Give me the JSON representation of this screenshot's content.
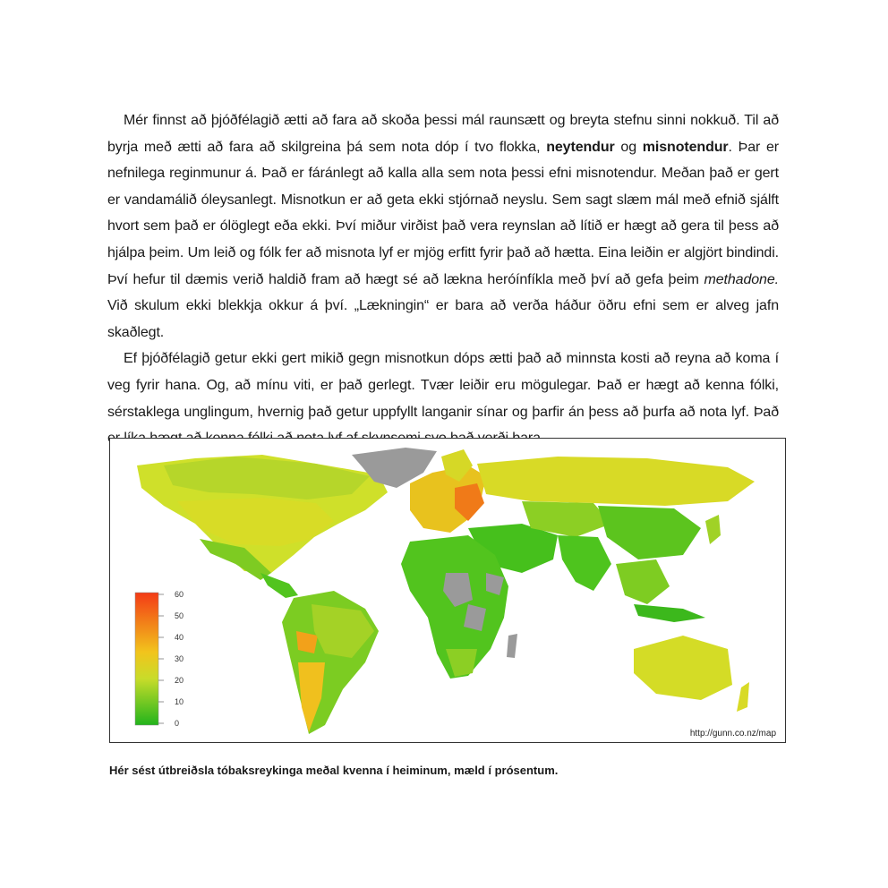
{
  "body_text": {
    "p1": [
      {
        "t": "Mér finnst að þjóðfélagið ætti að fara að skoða þessi mál raunsætt og breyta stefnu sinni nokkuð. Til að byrja með ætti að fara að skilgreina þá sem nota dóp í tvo flokka, "
      },
      {
        "t": "neytendur",
        "b": true
      },
      {
        "t": " og "
      },
      {
        "t": "misnotendur",
        "b": true
      },
      {
        "t": ". Þar er nefnilega reginmunur á. Það er fáránlegt að kalla alla sem nota þessi efni misnotendur. Meðan það er gert er vandamálið óleysanlegt. Misnotkun er að geta ekki stjórnað neyslu. Sem sagt slæm mál með efnið sjálft hvort sem það er ólöglegt eða ekki. Því miður virðist það vera reynslan að lítið er hægt að gera til þess að hjálpa þeim. Um leið og fólk fer að misnota lyf er mjög erfitt fyrir það að hætta. Eina leiðin er algjört bindindi. Því hefur til dæmis verið haldið fram að hægt sé að lækna heróínfíkla með því að gefa þeim "
      },
      {
        "t": "methadone.",
        "i": true
      },
      {
        "t": " Við skulum ekki blekkja okkur á því. „Lækningin“ er bara að verða háður öðru efni sem er alveg jafn skaðlegt."
      }
    ],
    "p2": [
      {
        "t": "Ef þjóðfélagið getur ekki gert mikið gegn misnotkun dóps ætti það að minnsta kosti að reyna að koma í veg fyrir hana. Og, að mínu viti, er það gerlegt. Tvær leiðir eru mögulegar. Það er hægt að kenna fólki, sérstaklega unglingum, hvernig það getur uppfyllt langanir sínar og þarfir án þess að þurfa að nota lyf. Það er líka hægt að kenna fólki að nota lyf af skynsemi svo það verði bara"
      }
    ]
  },
  "figure": {
    "legend_ticks": [
      "60",
      "50",
      "40",
      "30",
      "20",
      "10",
      "0"
    ],
    "credit": "http://gunn.co.nz/map",
    "colors": {
      "low": "#22b41c",
      "mid": "#d6dc2a",
      "high": "#f33b16",
      "no_data": "#9a9a9a"
    }
  },
  "caption": "Hér sést útbreiðsla tóbaksreykinga meðal kvenna í heiminum, mæld í prósentum."
}
